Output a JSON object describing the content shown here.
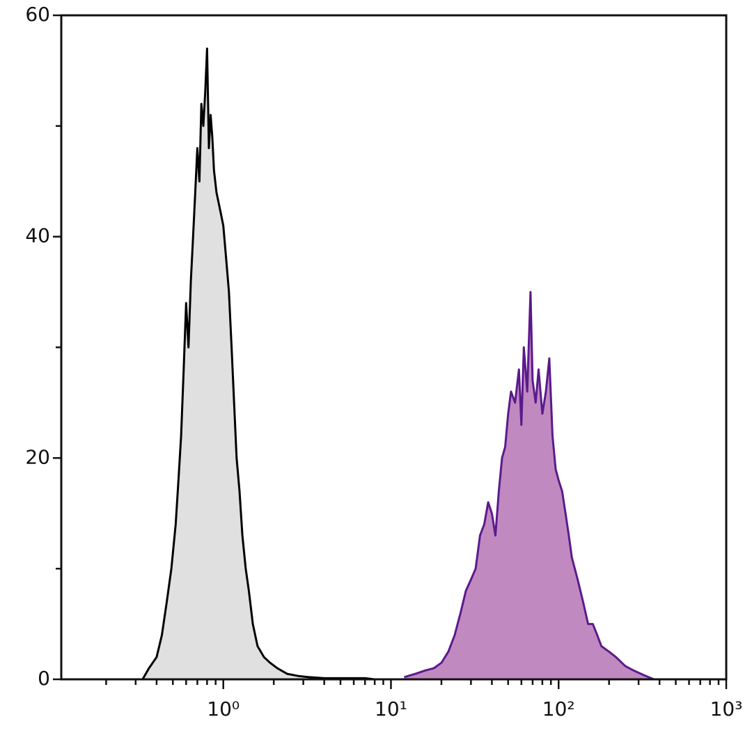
{
  "chart_data": {
    "type": "area",
    "xscale": "log",
    "xlim": [
      0.108,
      1000
    ],
    "xticks": [
      {
        "value": 1,
        "label": "10⁰"
      },
      {
        "value": 10,
        "label": "10¹"
      },
      {
        "value": 100,
        "label": "10²"
      },
      {
        "value": 1000,
        "label": "10³"
      }
    ],
    "ylim": [
      0,
      60
    ],
    "yticks": [
      0,
      20,
      40,
      60
    ],
    "yminor_ticks": [
      10,
      30,
      50
    ],
    "series": [
      {
        "color": "#000000",
        "fill": "#e0e0e0",
        "x": [
          0.33,
          0.36,
          0.4,
          0.43,
          0.46,
          0.49,
          0.52,
          0.54,
          0.56,
          0.58,
          0.6,
          0.62,
          0.64,
          0.66,
          0.68,
          0.7,
          0.72,
          0.74,
          0.76,
          0.78,
          0.8,
          0.82,
          0.84,
          0.86,
          0.88,
          0.91,
          0.94,
          0.97,
          1.0,
          1.04,
          1.08,
          1.12,
          1.16,
          1.2,
          1.25,
          1.3,
          1.36,
          1.42,
          1.5,
          1.6,
          1.75,
          1.9,
          2.1,
          2.4,
          2.8,
          3.2,
          4.0,
          5,
          7,
          8
        ],
        "values": [
          0,
          1,
          2,
          4,
          7,
          10,
          14,
          18,
          22,
          28,
          34,
          30,
          36,
          40,
          44,
          48,
          45,
          52,
          50,
          53,
          57,
          48,
          51,
          49,
          46,
          44,
          43,
          42,
          41,
          38,
          35,
          30,
          25,
          20,
          17,
          13,
          10,
          8,
          5,
          3,
          2,
          1.5,
          1,
          0.5,
          0.3,
          0.2,
          0.1,
          0.1,
          0.1,
          0
        ]
      },
      {
        "color": "#5b1a8c",
        "fill": "#c08ac0",
        "x": [
          12,
          14,
          16,
          18,
          20,
          22,
          24,
          26,
          28,
          30,
          32,
          34,
          36,
          38,
          40,
          42,
          44,
          46,
          48,
          50,
          52,
          55,
          58,
          60,
          62,
          65,
          68,
          70,
          73,
          76,
          80,
          84,
          88,
          92,
          96,
          100,
          105,
          110,
          115,
          120,
          130,
          140,
          150,
          160,
          170,
          180,
          200,
          220,
          250,
          280,
          320,
          370
        ],
        "values": [
          0.2,
          0.5,
          0.8,
          1,
          1.5,
          2.5,
          4,
          6,
          8,
          9,
          10,
          13,
          14,
          16,
          15,
          13,
          17,
          20,
          21,
          24,
          26,
          25,
          28,
          23,
          30,
          26,
          35,
          27,
          25,
          28,
          24,
          26,
          29,
          22,
          19,
          18,
          17,
          15,
          13,
          11,
          9,
          7,
          5,
          5,
          4,
          3,
          2.5,
          2,
          1.2,
          0.8,
          0.4,
          0
        ]
      }
    ]
  }
}
